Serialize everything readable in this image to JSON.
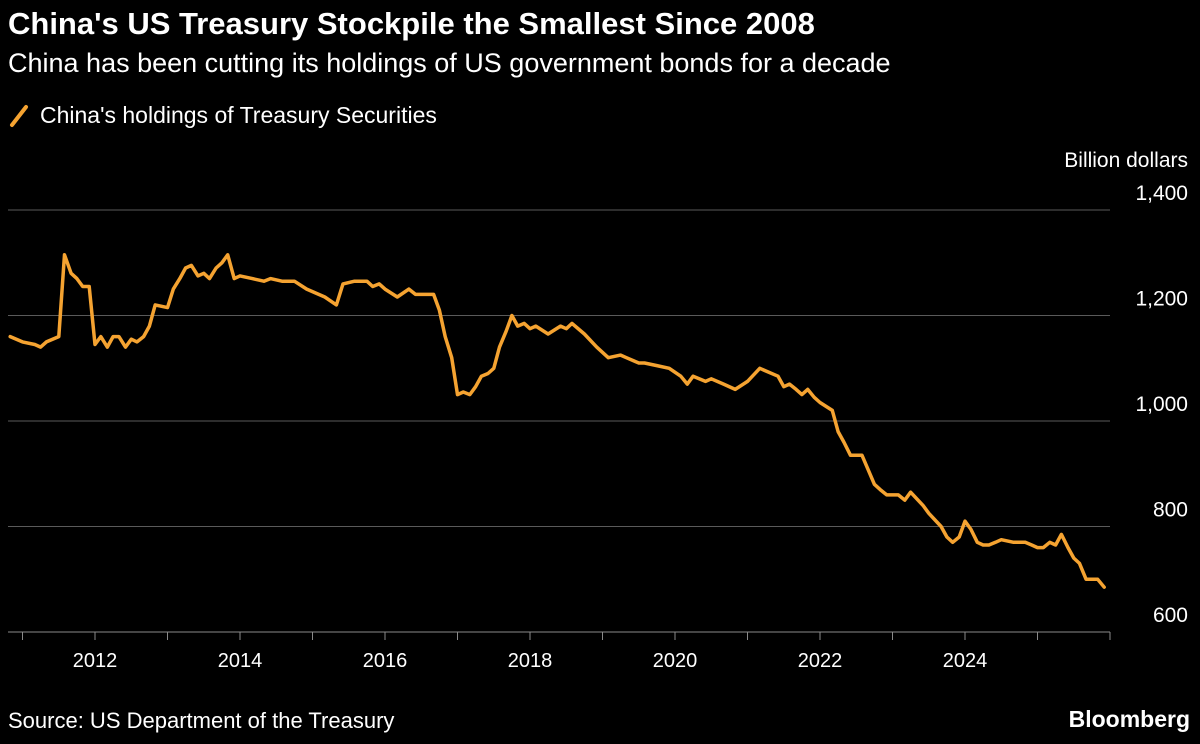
{
  "header": {
    "title": "China's US Treasury Stockpile the Smallest Since 2008",
    "subtitle": "China has been cutting its holdings of US government bonds for a decade"
  },
  "legend": {
    "label": "China's holdings of Treasury Securities"
  },
  "footer": {
    "source": "Source: US Department of the Treasury",
    "brand": "Bloomberg"
  },
  "colors": {
    "background": "#000000",
    "series": "#f5a331",
    "grid": "#5a5a5a",
    "text": "#ffffff"
  },
  "chart_data": {
    "type": "line",
    "ylabel": "Billion dollars",
    "ylim": [
      600,
      1400
    ],
    "yticks": [
      600,
      800,
      1000,
      1200,
      1400
    ],
    "ytick_labels": [
      "600",
      "800",
      "1,000",
      "1,200",
      "1,400"
    ],
    "xlim": [
      2010.8,
      2026.0
    ],
    "xticks": [
      2012,
      2014,
      2016,
      2018,
      2020,
      2022,
      2024
    ],
    "xtick_labels": [
      "2012",
      "2014",
      "2016",
      "2018",
      "2020",
      "2022",
      "2024"
    ],
    "grid": true,
    "legend_position": "top-left",
    "series": [
      {
        "name": "China's holdings of Treasury Securities",
        "x": [
          2010.83,
          2011.0,
          2011.17,
          2011.25,
          2011.33,
          2011.5,
          2011.58,
          2011.67,
          2011.75,
          2011.83,
          2011.92,
          2012.0,
          2012.08,
          2012.17,
          2012.25,
          2012.33,
          2012.42,
          2012.5,
          2012.58,
          2012.67,
          2012.75,
          2012.83,
          2013.0,
          2013.08,
          2013.17,
          2013.25,
          2013.33,
          2013.42,
          2013.5,
          2013.58,
          2013.67,
          2013.75,
          2013.83,
          2013.92,
          2014.0,
          2014.17,
          2014.33,
          2014.42,
          2014.58,
          2014.75,
          2014.92,
          2015.17,
          2015.33,
          2015.42,
          2015.58,
          2015.75,
          2015.83,
          2015.92,
          2016.0,
          2016.17,
          2016.33,
          2016.42,
          2016.5,
          2016.67,
          2016.75,
          2016.83,
          2016.92,
          2017.0,
          2017.08,
          2017.17,
          2017.25,
          2017.33,
          2017.42,
          2017.5,
          2017.58,
          2017.67,
          2017.75,
          2017.83,
          2017.92,
          2018.0,
          2018.08,
          2018.25,
          2018.42,
          2018.5,
          2018.58,
          2018.75,
          2018.92,
          2019.08,
          2019.25,
          2019.33,
          2019.5,
          2019.58,
          2019.75,
          2019.92,
          2020.08,
          2020.17,
          2020.25,
          2020.42,
          2020.5,
          2020.67,
          2020.83,
          2021.0,
          2021.17,
          2021.25,
          2021.42,
          2021.5,
          2021.58,
          2021.67,
          2021.75,
          2021.83,
          2021.92,
          2022.0,
          2022.17,
          2022.25,
          2022.33,
          2022.42,
          2022.5,
          2022.58,
          2022.75,
          2022.83,
          2022.92,
          2023.08,
          2023.17,
          2023.25,
          2023.42,
          2023.5,
          2023.67,
          2023.75,
          2023.83,
          2023.92,
          2024.0,
          2024.08,
          2024.17,
          2024.25,
          2024.33,
          2024.42,
          2024.5,
          2024.67,
          2024.83,
          2024.92,
          2025.0,
          2025.08,
          2025.17,
          2025.25,
          2025.33,
          2025.42,
          2025.5,
          2025.58,
          2025.67,
          2025.75,
          2025.83,
          2025.92
        ],
        "values": [
          1160,
          1150,
          1145,
          1140,
          1150,
          1160,
          1315,
          1280,
          1270,
          1255,
          1255,
          1145,
          1160,
          1140,
          1160,
          1160,
          1140,
          1155,
          1150,
          1160,
          1180,
          1220,
          1215,
          1250,
          1270,
          1290,
          1295,
          1275,
          1280,
          1270,
          1290,
          1300,
          1315,
          1270,
          1275,
          1270,
          1265,
          1270,
          1265,
          1265,
          1250,
          1235,
          1220,
          1260,
          1265,
          1265,
          1255,
          1260,
          1250,
          1235,
          1250,
          1240,
          1240,
          1240,
          1210,
          1160,
          1120,
          1050,
          1055,
          1050,
          1065,
          1085,
          1090,
          1100,
          1140,
          1170,
          1200,
          1180,
          1185,
          1175,
          1180,
          1165,
          1180,
          1175,
          1185,
          1165,
          1140,
          1120,
          1125,
          1120,
          1110,
          1110,
          1105,
          1100,
          1085,
          1070,
          1085,
          1075,
          1080,
          1070,
          1060,
          1075,
          1100,
          1095,
          1085,
          1065,
          1070,
          1060,
          1050,
          1060,
          1045,
          1035,
          1020,
          980,
          960,
          935,
          935,
          935,
          880,
          870,
          860,
          860,
          850,
          865,
          840,
          825,
          800,
          780,
          770,
          780,
          810,
          795,
          770,
          765,
          765,
          770,
          775,
          770,
          770,
          765,
          760,
          760,
          770,
          765,
          785,
          760,
          740,
          730,
          700,
          700,
          700,
          685
        ]
      }
    ]
  }
}
